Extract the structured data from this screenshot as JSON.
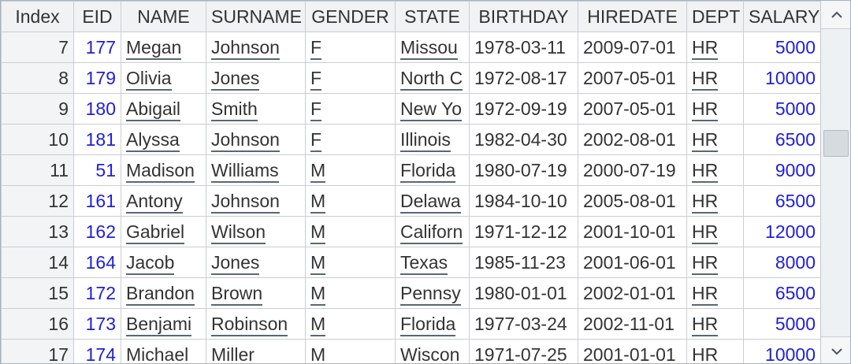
{
  "grid": {
    "columns": [
      "Index",
      "EID",
      "NAME",
      "SURNAME",
      "GENDER",
      "STATE",
      "BIRTHDAY",
      "HIREDATE",
      "DEPT",
      "SALARY"
    ],
    "rows": [
      {
        "index": "7",
        "eid": "177",
        "name": "Megan",
        "surname": "Johnson",
        "gender": "F",
        "state": "Missou",
        "birthday": "1978-03-11",
        "hiredate": "2009-07-01",
        "dept": "HR",
        "salary": "5000"
      },
      {
        "index": "8",
        "eid": "179",
        "name": "Olivia",
        "surname": "Jones",
        "gender": "F",
        "state": "North C",
        "birthday": "1972-08-17",
        "hiredate": "2007-05-01",
        "dept": "HR",
        "salary": "10000"
      },
      {
        "index": "9",
        "eid": "180",
        "name": "Abigail",
        "surname": "Smith",
        "gender": "F",
        "state": "New Yo",
        "birthday": "1972-09-19",
        "hiredate": "2007-05-01",
        "dept": "HR",
        "salary": "5000"
      },
      {
        "index": "10",
        "eid": "181",
        "name": "Alyssa",
        "surname": "Johnson",
        "gender": "F",
        "state": "Illinois",
        "birthday": "1982-04-30",
        "hiredate": "2002-08-01",
        "dept": "HR",
        "salary": "6500"
      },
      {
        "index": "11",
        "eid": "51",
        "name": "Madison",
        "surname": "Williams",
        "gender": "M",
        "state": "Florida",
        "birthday": "1980-07-19",
        "hiredate": "2000-07-19",
        "dept": "HR",
        "salary": "9000"
      },
      {
        "index": "12",
        "eid": "161",
        "name": "Antony",
        "surname": "Johnson",
        "gender": "M",
        "state": "Delawa",
        "birthday": "1984-10-10",
        "hiredate": "2005-08-01",
        "dept": "HR",
        "salary": "6500"
      },
      {
        "index": "13",
        "eid": "162",
        "name": "Gabriel",
        "surname": "Wilson",
        "gender": "M",
        "state": "Californ",
        "birthday": "1971-12-12",
        "hiredate": "2001-10-01",
        "dept": "HR",
        "salary": "12000"
      },
      {
        "index": "14",
        "eid": "164",
        "name": "Jacob",
        "surname": "Jones",
        "gender": "M",
        "state": "Texas",
        "birthday": "1985-11-23",
        "hiredate": "2001-06-01",
        "dept": "HR",
        "salary": "8000"
      },
      {
        "index": "15",
        "eid": "172",
        "name": "Brandon",
        "surname": "Brown",
        "gender": "M",
        "state": "Pennsy",
        "birthday": "1980-01-01",
        "hiredate": "2002-01-01",
        "dept": "HR",
        "salary": "6500"
      },
      {
        "index": "16",
        "eid": "173",
        "name": "Benjami",
        "surname": "Robinson",
        "gender": "M",
        "state": "Florida",
        "birthday": "1977-03-24",
        "hiredate": "2002-11-01",
        "dept": "HR",
        "salary": "5000"
      },
      {
        "index": "17",
        "eid": "174",
        "name": "Michael",
        "surname": "Miller",
        "gender": "M",
        "state": "Wiscon",
        "birthday": "1971-07-25",
        "hiredate": "2001-01-01",
        "dept": "HR",
        "salary": "10000"
      }
    ]
  },
  "scrollbar": {
    "up_icon": "chevron-up-icon",
    "down_icon": "chevron-down-icon",
    "position_fraction": 0.36
  }
}
